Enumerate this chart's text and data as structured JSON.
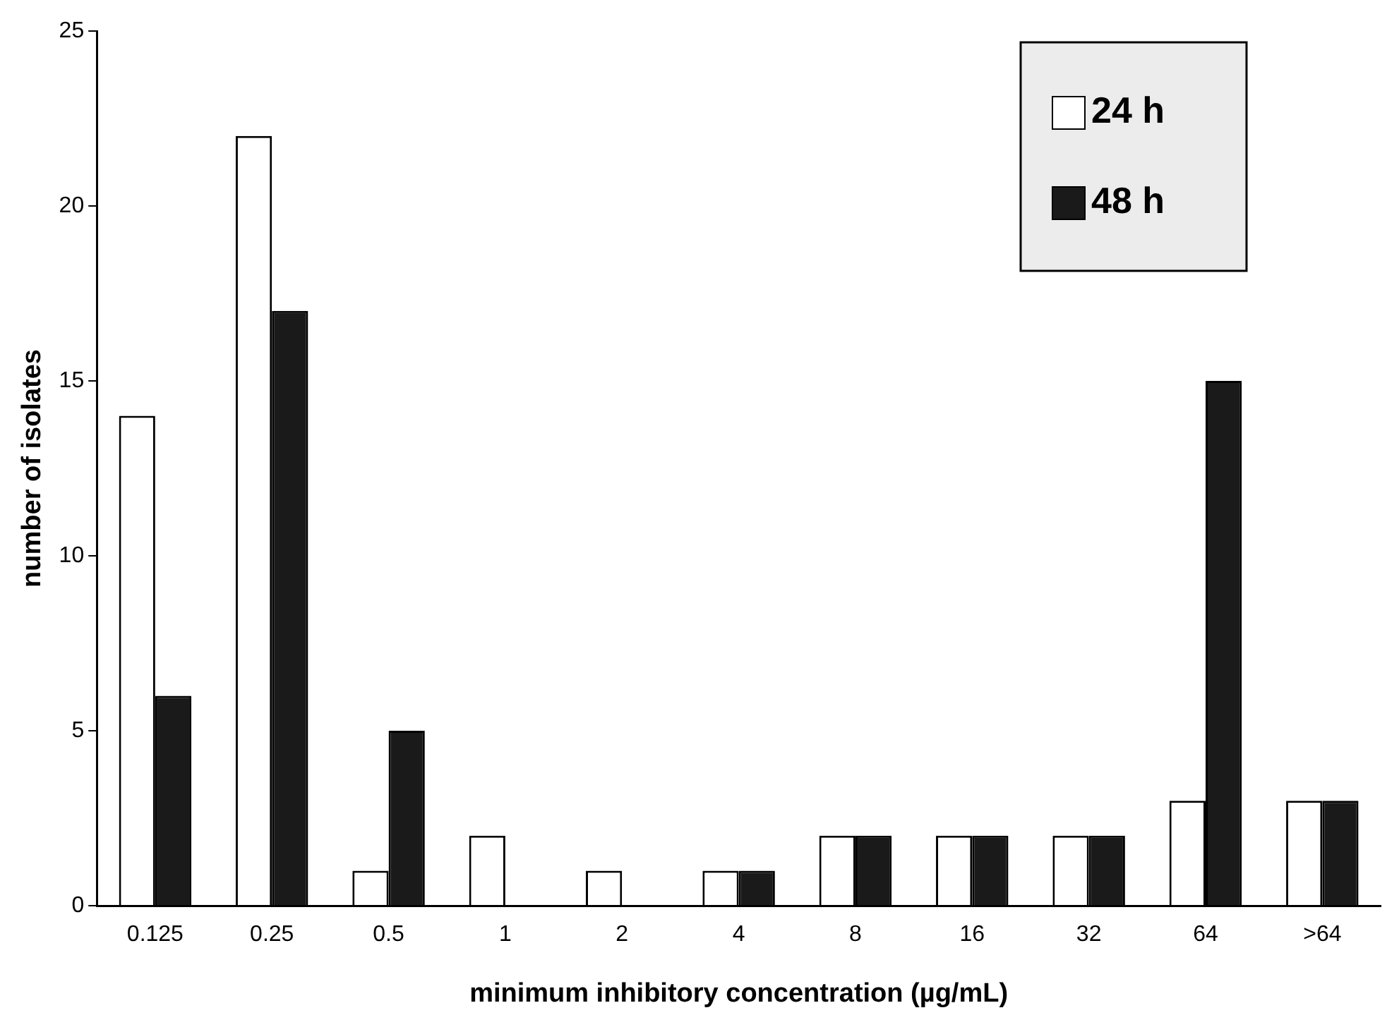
{
  "chart_data": {
    "type": "bar",
    "xlabel": "minimum inhibitory concentration (µg/mL)",
    "ylabel": "number of isolates",
    "categories": [
      "0.125",
      "0.25",
      "0.5",
      "1",
      "2",
      "4",
      "8",
      "16",
      "32",
      "64",
      ">64"
    ],
    "series": [
      {
        "name": "24 h",
        "color": "#ffffff",
        "values": [
          14,
          22,
          1,
          2,
          1,
          1,
          2,
          2,
          2,
          3,
          3
        ]
      },
      {
        "name": "48 h",
        "color": "#1a1a1a",
        "values": [
          6,
          17,
          5,
          0,
          0,
          1,
          2,
          2,
          2,
          15,
          3
        ]
      }
    ],
    "ylim": [
      0,
      25
    ],
    "yticks": [
      0,
      5,
      10,
      15,
      20,
      25
    ],
    "grid": false,
    "legend": "top right"
  }
}
